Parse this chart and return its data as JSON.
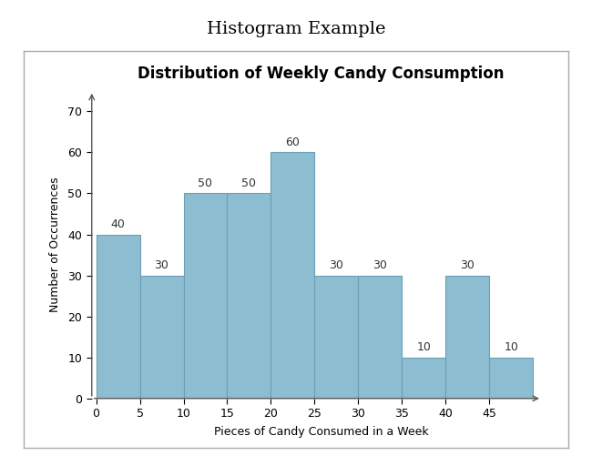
{
  "title": "Histogram Example",
  "chart_title": "Distribution of Weekly Candy Consumption",
  "xlabel": "Pieces of Candy Consumed in a Week",
  "ylabel": "Number of Occurrences",
  "bar_edges": [
    0,
    5,
    10,
    15,
    20,
    25,
    30,
    35,
    40,
    45,
    50
  ],
  "bar_heights": [
    40,
    30,
    50,
    50,
    60,
    30,
    30,
    10,
    30,
    10
  ],
  "bar_color": "#8dbdd1",
  "bar_edgecolor": "#6a9fb5",
  "ylim": [
    0,
    75
  ],
  "xlim": [
    -0.5,
    52
  ],
  "yticks": [
    0,
    10,
    20,
    30,
    40,
    50,
    60,
    70
  ],
  "xticks": [
    0,
    5,
    10,
    15,
    20,
    25,
    30,
    35,
    40,
    45
  ],
  "title_fontsize": 14,
  "chart_title_fontsize": 12,
  "label_fontsize": 9,
  "tick_fontsize": 9,
  "annotation_fontsize": 9,
  "background_color": "#ffffff",
  "outer_box_color": "#aaaaaa"
}
